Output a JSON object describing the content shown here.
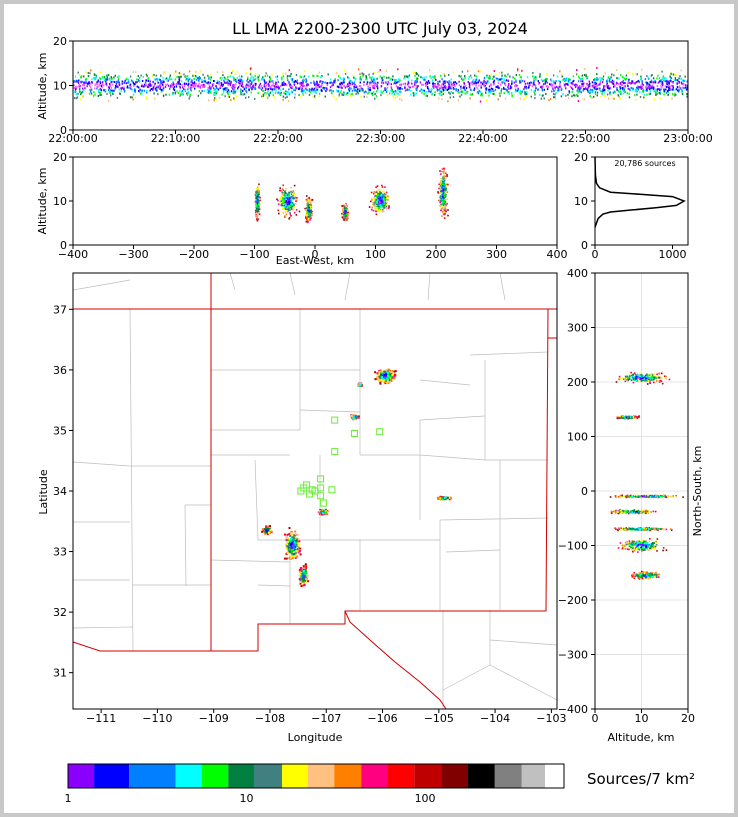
{
  "figure": {
    "title": "LL LMA 2200-2300 UTC July 03, 2024",
    "source_count_label": "20,786 sources"
  },
  "chart_data": [
    {
      "type": "scatter",
      "panel": "altitude-vs-time",
      "ylabel": "Altitude, km",
      "xlabel": "",
      "ylim": [
        0,
        20
      ],
      "x_ticks": [
        "22:00:00",
        "22:10:00",
        "22:20:00",
        "22:30:00",
        "22:40:00",
        "22:50:00",
        "23:00:00"
      ],
      "y_ticks": [
        0,
        10,
        20
      ],
      "description_of_data": "continuous band of sources centered near 10 km altitude across the whole hour",
      "band_center_km": 10,
      "band_range_km": [
        5,
        15
      ]
    },
    {
      "type": "scatter",
      "panel": "altitude-vs-east-west",
      "xlabel": "East-West, km",
      "ylabel": "Altitude, km",
      "xlim": [
        -400,
        400
      ],
      "ylim": [
        0,
        20
      ],
      "x_ticks": [
        -400,
        -300,
        -200,
        -100,
        0,
        100,
        200,
        300,
        400
      ],
      "y_ticks": [
        0,
        10,
        20
      ],
      "clusters": [
        {
          "x": -95,
          "y": 10,
          "w": 10,
          "h": 10
        },
        {
          "x": -45,
          "y": 10,
          "w": 40,
          "h": 9
        },
        {
          "x": -10,
          "y": 8,
          "w": 14,
          "h": 7
        },
        {
          "x": 50,
          "y": 7.5,
          "w": 12,
          "h": 5
        },
        {
          "x": 108,
          "y": 10,
          "w": 38,
          "h": 8
        },
        {
          "x": 212,
          "y": 12,
          "w": 18,
          "h": 14
        }
      ]
    },
    {
      "type": "line",
      "panel": "altitude-histogram",
      "xlim": [
        0,
        1200
      ],
      "ylim": [
        0,
        20
      ],
      "x_ticks": [
        0,
        1000
      ],
      "y_ticks": [
        0,
        10,
        20
      ],
      "x": [
        0,
        20,
        40,
        100,
        200,
        500,
        800,
        1050,
        1150,
        1000,
        600,
        200,
        60,
        20,
        5,
        0
      ],
      "y": [
        4,
        5,
        6,
        7,
        7.5,
        8,
        8.5,
        9,
        10,
        11,
        11.5,
        12,
        13,
        14,
        16,
        20
      ]
    },
    {
      "type": "scatter",
      "panel": "plan-view-map",
      "xlabel": "Longitude",
      "ylabel": "Latitude",
      "xlim": [
        -111.5,
        -102.9
      ],
      "ylim": [
        30.4,
        37.6
      ],
      "x_ticks": [
        -111,
        -110,
        -109,
        -108,
        -107,
        -106,
        -105,
        -104,
        -103
      ],
      "y_ticks": [
        31,
        32,
        33,
        34,
        35,
        36,
        37
      ],
      "clusters": [
        {
          "lon": -105.95,
          "lat": 35.9,
          "w": 0.45,
          "h": 0.3
        },
        {
          "lon": -107.6,
          "lat": 33.1,
          "w": 0.35,
          "h": 0.6
        },
        {
          "lon": -107.4,
          "lat": 32.6,
          "w": 0.2,
          "h": 0.4
        },
        {
          "lon": -108.05,
          "lat": 33.35,
          "w": 0.2,
          "h": 0.15
        },
        {
          "lon": -107.05,
          "lat": 33.65,
          "w": 0.2,
          "h": 0.1
        },
        {
          "lon": -106.5,
          "lat": 35.22,
          "w": 0.2,
          "h": 0.08
        },
        {
          "lon": -104.9,
          "lat": 33.88,
          "w": 0.3,
          "h": 0.06
        },
        {
          "lon": -106.4,
          "lat": 35.75,
          "w": 0.1,
          "h": 0.05
        }
      ],
      "stations": [
        [
          -106.85,
          35.17
        ],
        [
          -106.5,
          34.95
        ],
        [
          -106.05,
          34.98
        ],
        [
          -106.85,
          34.65
        ],
        [
          -107.1,
          34.2
        ],
        [
          -107.1,
          34.05
        ],
        [
          -107.25,
          34.02
        ],
        [
          -107.4,
          34.05
        ],
        [
          -107.35,
          34.1
        ],
        [
          -107.45,
          34.0
        ],
        [
          -107.2,
          34.0
        ],
        [
          -106.9,
          34.02
        ],
        [
          -107.1,
          33.92
        ],
        [
          -107.05,
          33.8
        ],
        [
          -107.3,
          33.95
        ]
      ]
    },
    {
      "type": "scatter",
      "panel": "north-south-vs-altitude",
      "xlabel": "Altitude, km",
      "ylabel": "North-South, km",
      "xlim": [
        0,
        20
      ],
      "ylim": [
        -400,
        400
      ],
      "x_ticks": [
        0,
        10,
        20
      ],
      "y_ticks": [
        -400,
        -300,
        -200,
        -100,
        0,
        100,
        200,
        300,
        400
      ],
      "clusters": [
        {
          "alt": 10,
          "ns": 208,
          "w": 14,
          "h": 25
        },
        {
          "alt": 7,
          "ns": 135,
          "w": 6,
          "h": 6
        },
        {
          "alt": 11,
          "ns": -10,
          "w": 18,
          "h": 6
        },
        {
          "alt": 8,
          "ns": -38,
          "w": 12,
          "h": 8
        },
        {
          "alt": 10,
          "ns": -70,
          "w": 16,
          "h": 6
        },
        {
          "alt": 10,
          "ns": -100,
          "w": 12,
          "h": 30
        },
        {
          "alt": 11,
          "ns": -155,
          "w": 8,
          "h": 16
        }
      ]
    },
    {
      "type": "colorbar",
      "panel": "source-density-colorbar",
      "label": "Sources/7 km²",
      "tick_labels": [
        "1",
        "10",
        "100"
      ],
      "colors": [
        "#ff55ff",
        "#8a00ff",
        "#0000ff",
        "#0080ff",
        "#00ffff",
        "#00ff00",
        "#008040",
        "#408080",
        "#ffff00",
        "#ffc080",
        "#ff8000",
        "#ff0080",
        "#ff0000",
        "#c00000",
        "#800000",
        "#000000",
        "#808080",
        "#c0c0c0",
        "#ffffff"
      ]
    }
  ]
}
